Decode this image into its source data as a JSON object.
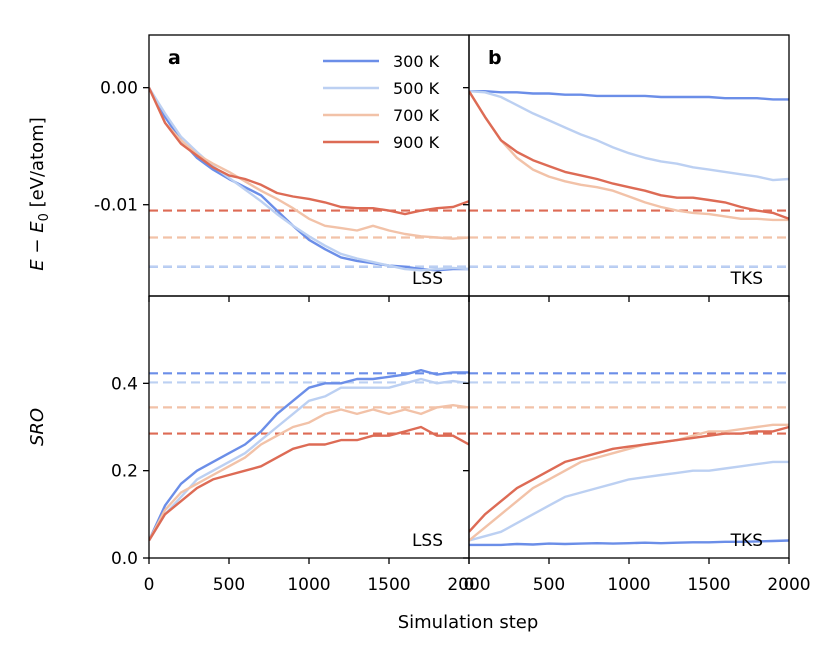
{
  "chart_data": {
    "type": "line",
    "xlabel": "Simulation step",
    "ylabel_top_plain": "E − E",
    "ylabel_top_sub": "0",
    "ylabel_top_unit": " [eV/atom]",
    "ylabel_bottom": "SRO",
    "xlim": [
      0,
      2000
    ],
    "ylim_top": [
      -0.0178,
      0.0045
    ],
    "ylim_bottom": [
      0.0,
      0.6
    ],
    "xticks": [
      0,
      500,
      1000,
      1500,
      2000
    ],
    "xtick_labels": [
      "0",
      "500",
      "1000",
      "1500",
      "2000"
    ],
    "yticks_top": [
      0.0,
      -0.01
    ],
    "ytick_labels_top": [
      "0.00",
      "-0.01"
    ],
    "yticks_bottom": [
      0.0,
      0.2,
      0.4
    ],
    "ytick_labels_bottom": [
      "0.0",
      "0.2",
      "0.4"
    ],
    "series_names": [
      "300 K",
      "500 K",
      "700 K",
      "900 K"
    ],
    "colors": [
      "#6b8ee8",
      "#bcd0f2",
      "#f2c2a8",
      "#dd6b55"
    ],
    "legend_position": "top-right of panel a",
    "panels": [
      {
        "row": "top",
        "col": 0,
        "letter": "a",
        "method": "LSS",
        "reference_lines": [
          -0.0153,
          -0.0153,
          -0.0128,
          -0.0105
        ],
        "series": [
          {
            "name": "300 K",
            "x": [
              0,
              100,
              200,
              300,
              400,
              500,
              600,
              700,
              800,
              900,
              1000,
              1100,
              1200,
              1300,
              1400,
              1500,
              1600,
              1700,
              1800,
              1900,
              2000
            ],
            "values": [
              0.0,
              -0.0025,
              -0.0045,
              -0.006,
              -0.007,
              -0.0078,
              -0.0085,
              -0.0092,
              -0.0105,
              -0.0118,
              -0.013,
              -0.0138,
              -0.0145,
              -0.0148,
              -0.015,
              -0.0152,
              -0.0153,
              -0.0155,
              -0.0156,
              -0.0155,
              -0.0155
            ]
          },
          {
            "name": "500 K",
            "x": [
              0,
              100,
              200,
              300,
              400,
              500,
              600,
              700,
              800,
              900,
              1000,
              1100,
              1200,
              1300,
              1400,
              1500,
              1600,
              1700,
              1800,
              1900,
              2000
            ],
            "values": [
              0.0,
              -0.0022,
              -0.0042,
              -0.0055,
              -0.0067,
              -0.0077,
              -0.0087,
              -0.0097,
              -0.0108,
              -0.0118,
              -0.0127,
              -0.0135,
              -0.0142,
              -0.0146,
              -0.0149,
              -0.0152,
              -0.0155,
              -0.0156,
              -0.0155,
              -0.0154,
              -0.0155
            ]
          },
          {
            "name": "700 K",
            "x": [
              0,
              100,
              200,
              300,
              400,
              500,
              600,
              700,
              800,
              900,
              1000,
              1100,
              1200,
              1300,
              1400,
              1500,
              1600,
              1700,
              1800,
              1900,
              2000
            ],
            "values": [
              0.0,
              -0.003,
              -0.0045,
              -0.0057,
              -0.0065,
              -0.0072,
              -0.008,
              -0.0088,
              -0.0095,
              -0.0103,
              -0.0112,
              -0.0118,
              -0.012,
              -0.0122,
              -0.0118,
              -0.0122,
              -0.0125,
              -0.0127,
              -0.0128,
              -0.0129,
              -0.0128
            ]
          },
          {
            "name": "900 K",
            "x": [
              0,
              100,
              200,
              300,
              400,
              500,
              600,
              700,
              800,
              900,
              1000,
              1100,
              1200,
              1300,
              1400,
              1500,
              1600,
              1700,
              1800,
              1900,
              2000
            ],
            "values": [
              0.0,
              -0.003,
              -0.0048,
              -0.0058,
              -0.0068,
              -0.0075,
              -0.0078,
              -0.0083,
              -0.009,
              -0.0093,
              -0.0095,
              -0.0098,
              -0.0102,
              -0.0103,
              -0.0103,
              -0.0105,
              -0.0108,
              -0.0105,
              -0.0103,
              -0.0102,
              -0.0097
            ]
          }
        ]
      },
      {
        "row": "top",
        "col": 1,
        "letter": "b",
        "method": "TKS",
        "reference_lines": [
          -0.0153,
          -0.0153,
          -0.0128,
          -0.0105
        ],
        "series": [
          {
            "name": "300 K",
            "x": [
              0,
              100,
              200,
              300,
              400,
              500,
              600,
              700,
              800,
              900,
              1000,
              1100,
              1200,
              1300,
              1400,
              1500,
              1600,
              1700,
              1800,
              1900,
              2000
            ],
            "values": [
              -0.0003,
              -0.0003,
              -0.0004,
              -0.0004,
              -0.0005,
              -0.0005,
              -0.0006,
              -0.0006,
              -0.0007,
              -0.0007,
              -0.0007,
              -0.0007,
              -0.0008,
              -0.0008,
              -0.0008,
              -0.0008,
              -0.0009,
              -0.0009,
              -0.0009,
              -0.001,
              -0.001
            ]
          },
          {
            "name": "500 K",
            "x": [
              0,
              100,
              200,
              300,
              400,
              500,
              600,
              700,
              800,
              900,
              1000,
              1100,
              1200,
              1300,
              1400,
              1500,
              1600,
              1700,
              1800,
              1900,
              2000
            ],
            "values": [
              -0.0003,
              -0.0004,
              -0.0008,
              -0.0015,
              -0.0022,
              -0.0028,
              -0.0034,
              -0.004,
              -0.0045,
              -0.0051,
              -0.0056,
              -0.006,
              -0.0063,
              -0.0065,
              -0.0068,
              -0.007,
              -0.0072,
              -0.0074,
              -0.0076,
              -0.0079,
              -0.0078
            ]
          },
          {
            "name": "700 K",
            "x": [
              0,
              100,
              200,
              300,
              400,
              500,
              600,
              700,
              800,
              900,
              1000,
              1100,
              1200,
              1300,
              1400,
              1500,
              1600,
              1700,
              1800,
              1900,
              2000
            ],
            "values": [
              -0.0003,
              -0.0025,
              -0.0045,
              -0.006,
              -0.007,
              -0.0076,
              -0.008,
              -0.0083,
              -0.0085,
              -0.0088,
              -0.0093,
              -0.0098,
              -0.0102,
              -0.0105,
              -0.0107,
              -0.0108,
              -0.011,
              -0.0112,
              -0.0112,
              -0.0113,
              -0.0113
            ]
          },
          {
            "name": "900 K",
            "x": [
              0,
              100,
              200,
              300,
              400,
              500,
              600,
              700,
              800,
              900,
              1000,
              1100,
              1200,
              1300,
              1400,
              1500,
              1600,
              1700,
              1800,
              1900,
              2000
            ],
            "values": [
              -0.0003,
              -0.0025,
              -0.0045,
              -0.0055,
              -0.0062,
              -0.0067,
              -0.0072,
              -0.0075,
              -0.0078,
              -0.0082,
              -0.0085,
              -0.0088,
              -0.0092,
              -0.0094,
              -0.0094,
              -0.0096,
              -0.0098,
              -0.0102,
              -0.0105,
              -0.0107,
              -0.0112
            ]
          }
        ]
      },
      {
        "row": "bottom",
        "col": 0,
        "letter": "",
        "method": "LSS",
        "reference_lines": [
          0.423,
          0.402,
          0.345,
          0.285
        ],
        "series": [
          {
            "name": "300 K",
            "x": [
              0,
              100,
              200,
              300,
              400,
              500,
              600,
              700,
              800,
              900,
              1000,
              1100,
              1200,
              1300,
              1400,
              1500,
              1600,
              1700,
              1800,
              1900,
              2000
            ],
            "values": [
              0.04,
              0.12,
              0.17,
              0.2,
              0.22,
              0.24,
              0.26,
              0.29,
              0.33,
              0.36,
              0.39,
              0.4,
              0.4,
              0.41,
              0.41,
              0.415,
              0.42,
              0.43,
              0.42,
              0.425,
              0.425
            ]
          },
          {
            "name": "500 K",
            "x": [
              0,
              100,
              200,
              300,
              400,
              500,
              600,
              700,
              800,
              900,
              1000,
              1100,
              1200,
              1300,
              1400,
              1500,
              1600,
              1700,
              1800,
              1900,
              2000
            ],
            "values": [
              0.04,
              0.1,
              0.14,
              0.18,
              0.2,
              0.22,
              0.24,
              0.27,
              0.3,
              0.33,
              0.36,
              0.37,
              0.39,
              0.39,
              0.39,
              0.39,
              0.4,
              0.41,
              0.4,
              0.405,
              0.4
            ]
          },
          {
            "name": "700 K",
            "x": [
              0,
              100,
              200,
              300,
              400,
              500,
              600,
              700,
              800,
              900,
              1000,
              1100,
              1200,
              1300,
              1400,
              1500,
              1600,
              1700,
              1800,
              1900,
              2000
            ],
            "values": [
              0.04,
              0.11,
              0.15,
              0.17,
              0.19,
              0.21,
              0.23,
              0.26,
              0.28,
              0.3,
              0.31,
              0.33,
              0.34,
              0.33,
              0.34,
              0.33,
              0.34,
              0.33,
              0.345,
              0.35,
              0.345
            ]
          },
          {
            "name": "900 K",
            "x": [
              0,
              100,
              200,
              300,
              400,
              500,
              600,
              700,
              800,
              900,
              1000,
              1100,
              1200,
              1300,
              1400,
              1500,
              1600,
              1700,
              1800,
              1900,
              2000
            ],
            "values": [
              0.04,
              0.1,
              0.13,
              0.16,
              0.18,
              0.19,
              0.2,
              0.21,
              0.23,
              0.25,
              0.26,
              0.26,
              0.27,
              0.27,
              0.28,
              0.28,
              0.29,
              0.3,
              0.28,
              0.28,
              0.26
            ]
          }
        ]
      },
      {
        "row": "bottom",
        "col": 1,
        "letter": "",
        "method": "TKS",
        "reference_lines": [
          0.423,
          0.402,
          0.345,
          0.285
        ],
        "series": [
          {
            "name": "300 K",
            "x": [
              0,
              100,
              200,
              300,
              400,
              500,
              600,
              700,
              800,
              900,
              1000,
              1100,
              1200,
              1300,
              1400,
              1500,
              1600,
              1700,
              1800,
              1900,
              2000
            ],
            "values": [
              0.03,
              0.03,
              0.03,
              0.032,
              0.031,
              0.033,
              0.032,
              0.033,
              0.034,
              0.033,
              0.034,
              0.035,
              0.034,
              0.035,
              0.036,
              0.036,
              0.037,
              0.037,
              0.038,
              0.039,
              0.04
            ]
          },
          {
            "name": "500 K",
            "x": [
              0,
              100,
              200,
              300,
              400,
              500,
              600,
              700,
              800,
              900,
              1000,
              1100,
              1200,
              1300,
              1400,
              1500,
              1600,
              1700,
              1800,
              1900,
              2000
            ],
            "values": [
              0.04,
              0.05,
              0.06,
              0.08,
              0.1,
              0.12,
              0.14,
              0.15,
              0.16,
              0.17,
              0.18,
              0.185,
              0.19,
              0.195,
              0.2,
              0.2,
              0.205,
              0.21,
              0.215,
              0.22,
              0.22
            ]
          },
          {
            "name": "700 K",
            "x": [
              0,
              100,
              200,
              300,
              400,
              500,
              600,
              700,
              800,
              900,
              1000,
              1100,
              1200,
              1300,
              1400,
              1500,
              1600,
              1700,
              1800,
              1900,
              2000
            ],
            "values": [
              0.04,
              0.07,
              0.1,
              0.13,
              0.16,
              0.18,
              0.2,
              0.22,
              0.23,
              0.24,
              0.25,
              0.26,
              0.265,
              0.27,
              0.28,
              0.29,
              0.29,
              0.295,
              0.3,
              0.305,
              0.305
            ]
          },
          {
            "name": "900 K",
            "x": [
              0,
              100,
              200,
              300,
              400,
              500,
              600,
              700,
              800,
              900,
              1000,
              1100,
              1200,
              1300,
              1400,
              1500,
              1600,
              1700,
              1800,
              1900,
              2000
            ],
            "values": [
              0.06,
              0.1,
              0.13,
              0.16,
              0.18,
              0.2,
              0.22,
              0.23,
              0.24,
              0.25,
              0.255,
              0.26,
              0.265,
              0.27,
              0.275,
              0.28,
              0.285,
              0.285,
              0.29,
              0.29,
              0.3
            ]
          }
        ]
      }
    ]
  }
}
